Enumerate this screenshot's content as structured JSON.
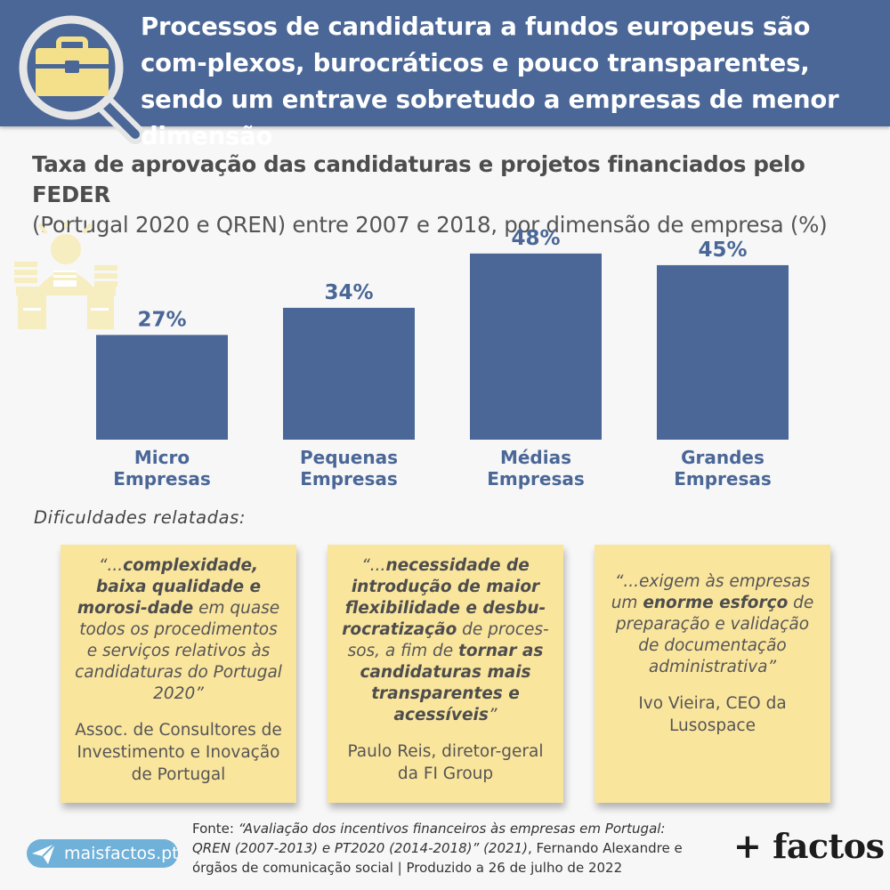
{
  "header": {
    "title": "Processos de candidatura a fundos europeus são com-plexos, burocráticos e pouco transparentes, sendo um entrave sobretudo a empresas de menor dimensão",
    "icon": "briefcase-magnifier-icon",
    "background_color": "#4a6797"
  },
  "subtitle": {
    "bold": "Taxa de aprovação das candidaturas e projetos financiados pelo FEDER",
    "rest": "(Portugal 2020 e QREN) entre 2007 e 2018, por dimensão de empresa (%)"
  },
  "chart_data": {
    "type": "bar",
    "categories": [
      [
        "Micro",
        "Empresas"
      ],
      [
        "Pequenas",
        "Empresas"
      ],
      [
        "Médias",
        "Empresas"
      ],
      [
        "Grandes",
        "Empresas"
      ]
    ],
    "values": [
      27,
      34,
      48,
      45
    ],
    "value_labels": [
      "27%",
      "34%",
      "48%",
      "45%"
    ],
    "ylim": [
      0,
      56
    ],
    "grid": false,
    "bar_color": "#4a6797"
  },
  "difficulties_label": "Dificuldades relatadas:",
  "notes": [
    {
      "quote_parts": [
        {
          "text": "“...",
          "bold": false
        },
        {
          "text": "complexidade, baixa qualidade e morosi-dade",
          "bold": true
        },
        {
          "text": " em quase todos os procedimentos e serviços relativos às candidaturas do Portugal 2020”",
          "bold": false
        }
      ],
      "author": "Assoc. de Consultores de Investimento e Inovação de Portugal"
    },
    {
      "quote_parts": [
        {
          "text": "“...",
          "bold": false
        },
        {
          "text": "necessidade de introdução de maior flexibilidade e desbu-rocratização",
          "bold": true
        },
        {
          "text": " de proces-sos, a fim de ",
          "bold": false
        },
        {
          "text": "tornar as candidaturas mais transparentes e acessíveis",
          "bold": true
        },
        {
          "text": "”",
          "bold": false
        }
      ],
      "author": "Paulo Reis, diretor-geral da FI Group"
    },
    {
      "quote_parts": [
        {
          "text": "“...exigem às empresas um ",
          "bold": false
        },
        {
          "text": "enorme esforço",
          "bold": true
        },
        {
          "text": " de preparação e validação de documentação administrativa”",
          "bold": false
        }
      ],
      "author": "Ivo Vieira, CEO da Lusospace"
    }
  ],
  "source": {
    "prefix": "Fonte: ",
    "title_italic": "“Avaliação dos incentivos financeiros às empresas em Portugal: QREN (2007-2013) e PT2020 (2014-2018)” (2021)",
    "rest": ", Fernando Alexandre e órgãos de comunicação social | Produzido a 26 de julho de 2022"
  },
  "site": {
    "label": "maisfactos.pt",
    "icon": "paper-plane-icon"
  },
  "brand": "+ factos"
}
